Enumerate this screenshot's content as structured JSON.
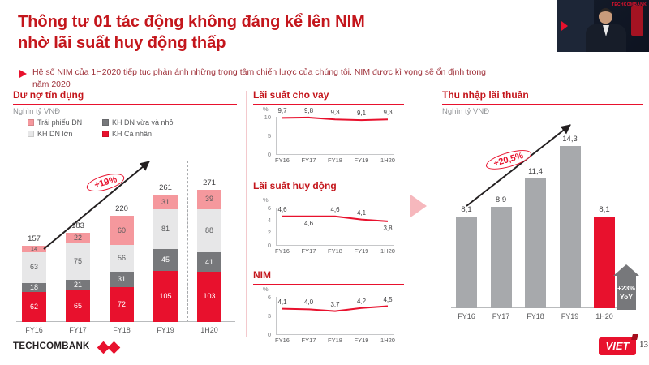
{
  "header": {
    "title_line1": "Thông tư 01 tác động không đáng kể lên NIM",
    "title_line2": "nhờ lãi suất huy động thấp",
    "subtitle": "Hệ số NIM của 1H2020 tiếp tục phản ánh những trọng tâm chiến lược của chúng tôi. NIM được kì vọng sẽ ổn định trong năm 2020"
  },
  "webcam": {
    "logo_text": "TECHCOMBANK"
  },
  "footer": {
    "brand": "TECHCOMBANK",
    "badge": "VIET",
    "page_number": "13"
  },
  "colors": {
    "brand_red": "#e8112d",
    "title_red": "#c4161c",
    "dark_gray": "#77787b",
    "light_gray": "#e7e7e8",
    "pink": "#f5989d",
    "bar_gray": "#a7a9ac"
  },
  "chart_data": [
    {
      "id": "credit",
      "type": "bar",
      "stacked": true,
      "title": "Dư nợ tín dụng",
      "unit_label": "Nghìn tỷ VNĐ",
      "categories": [
        "FY16",
        "FY17",
        "FY18",
        "FY19",
        "1H20"
      ],
      "series": [
        {
          "name": "KH Cá nhân",
          "color": "#e8112d",
          "label_color": "#ffffff",
          "values": [
            62,
            65,
            72,
            105,
            103
          ]
        },
        {
          "name": "KH DN vừa và nhỏ",
          "color": "#77787b",
          "label_color": "#ffffff",
          "values": [
            18,
            21,
            31,
            45,
            41
          ]
        },
        {
          "name": "KH DN lớn",
          "color": "#e7e7e8",
          "label_color": "#58595b",
          "values": [
            63,
            75,
            56,
            81,
            88
          ]
        },
        {
          "name": "Trái phiếu DN",
          "color": "#f5989d",
          "label_color": "#58595b",
          "values": [
            14,
            22,
            60,
            31,
            39
          ]
        }
      ],
      "totals": [
        157,
        183,
        220,
        261,
        271
      ],
      "legend": [
        {
          "label": "Trái phiếu DN",
          "color": "#f5989d"
        },
        {
          "label": "KH DN vừa và nhỏ",
          "color": "#77787b"
        },
        {
          "label": "KH DN lớn",
          "color": "#e7e7e8"
        },
        {
          "label": "KH Cá nhân",
          "color": "#e8112d"
        }
      ],
      "annotation": "+19%",
      "ylim": [
        0,
        280
      ],
      "separator_before_last": true
    },
    {
      "id": "lending_rate",
      "type": "line",
      "title": "Lãi suất cho vay",
      "y_axis_label": "%",
      "y_ticks": [
        10,
        5,
        0
      ],
      "ylim": [
        0,
        10
      ],
      "categories": [
        "FY16",
        "FY17",
        "FY18",
        "FY19",
        "1H20"
      ],
      "values": [
        9.7,
        9.8,
        9.3,
        9.1,
        9.3
      ],
      "labels": [
        "9,7",
        "9,8",
        "9,3",
        "9,1",
        "9,3"
      ],
      "label_side": [
        "above",
        "above",
        "above",
        "above",
        "above"
      ],
      "line_color": "#e8112d"
    },
    {
      "id": "deposit_rate",
      "type": "line",
      "title": "Lãi suất huy động",
      "y_axis_label": "%",
      "y_ticks": [
        6,
        4,
        2,
        0
      ],
      "ylim": [
        0,
        6
      ],
      "categories": [
        "FY16",
        "FY17",
        "FY18",
        "FY19",
        "1H20"
      ],
      "values": [
        4.6,
        4.6,
        4.6,
        4.1,
        3.8
      ],
      "labels": [
        "4,6",
        "4,6",
        "4,6",
        "4,1",
        "3,8"
      ],
      "label_side": [
        "above",
        "below",
        "above",
        "above",
        "below"
      ],
      "line_color": "#e8112d"
    },
    {
      "id": "nim",
      "type": "line",
      "title": "NIM",
      "y_axis_label": "%",
      "y_ticks": [
        6,
        3,
        0
      ],
      "ylim": [
        0,
        6
      ],
      "categories": [
        "FY16",
        "FY17",
        "FY18",
        "FY19",
        "1H20"
      ],
      "values": [
        4.1,
        4.0,
        3.7,
        4.2,
        4.5
      ],
      "labels": [
        "4,1",
        "4,0",
        "3,7",
        "4,2",
        "4,5"
      ],
      "label_side": [
        "above",
        "above",
        "above",
        "above",
        "above"
      ],
      "line_color": "#e8112d"
    },
    {
      "id": "nii",
      "type": "bar",
      "stacked": false,
      "title": "Thu nhập lãi thuần",
      "unit_label": "Nghìn tỷ VNĐ",
      "categories": [
        "FY16",
        "FY17",
        "FY18",
        "FY19",
        "1H20"
      ],
      "values": [
        8.1,
        8.9,
        11.4,
        14.3,
        8.1
      ],
      "labels": [
        "8,1",
        "8,9",
        "11,4",
        "14,3",
        "8,1"
      ],
      "bar_colors": [
        "#a7a9ac",
        "#a7a9ac",
        "#a7a9ac",
        "#a7a9ac",
        "#e8112d"
      ],
      "annotation": "+20,5%",
      "yoy_badge": {
        "line1": "+23%",
        "line2": "YoY"
      },
      "ylim": [
        0,
        16
      ]
    }
  ]
}
